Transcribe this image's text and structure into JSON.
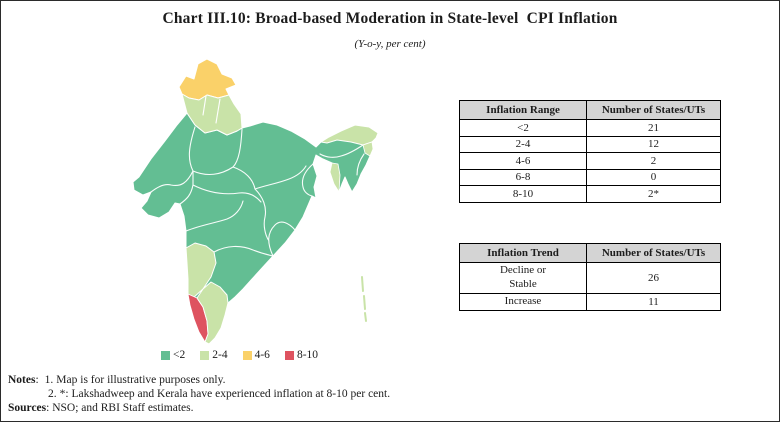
{
  "header": {
    "title": "Chart III.10: Broad-based Moderation in State-level  CPI Inflation",
    "subtitle": "(Y-o-y, per cent)"
  },
  "colors": {
    "green": "#63BE93",
    "light_green": "#C9E3A8",
    "yellow": "#FAD169",
    "red": "#DE5360",
    "table_header_bg": "#D4D4D4",
    "border": "#000000"
  },
  "map": {
    "description": "Choropleth map of India showing state-level CPI inflation ranges",
    "regions": [
      {
        "name": "jammu-kashmir-ladakh",
        "inflation_range": "4-6",
        "color": "yellow"
      },
      {
        "name": "punjab-himachal-uttarakhand",
        "inflation_range": "2-4",
        "color": "light_green"
      },
      {
        "name": "main-body-most-states",
        "inflation_range": "<2",
        "color": "green"
      },
      {
        "name": "karnataka",
        "inflation_range": "2-4",
        "color": "light_green"
      },
      {
        "name": "tamil-nadu",
        "inflation_range": "2-4",
        "color": "light_green"
      },
      {
        "name": "kerala",
        "inflation_range": "8-10",
        "color": "red"
      },
      {
        "name": "arunachal-pradesh",
        "inflation_range": "2-4",
        "color": "light_green"
      },
      {
        "name": "nagaland",
        "inflation_range": "2-4",
        "color": "light_green"
      },
      {
        "name": "tripura",
        "inflation_range": "2-4",
        "color": "light_green"
      },
      {
        "name": "andaman-nicobar-islands",
        "inflation_range": "2-4",
        "color": "light_green"
      }
    ]
  },
  "legend": {
    "items": [
      {
        "label": "<2",
        "color": "#63BE93"
      },
      {
        "label": "2-4",
        "color": "#C9E3A8"
      },
      {
        "label": "4-6",
        "color": "#FAD169"
      },
      {
        "label": "8-10",
        "color": "#DE5360"
      }
    ]
  },
  "chart_data": [
    {
      "type": "table",
      "title": "Distribution of states by inflation range",
      "columns": [
        "Inflation Range",
        "Number of States/UTs"
      ],
      "rows": [
        [
          "<2",
          "21"
        ],
        [
          "2-4",
          "12"
        ],
        [
          "4-6",
          "2"
        ],
        [
          "6-8",
          "0"
        ],
        [
          "8-10",
          "2*"
        ]
      ]
    },
    {
      "type": "table",
      "title": "Distribution of states by inflation trend",
      "columns": [
        "Inflation Trend",
        "Number of States/UTs"
      ],
      "rows": [
        [
          "Decline or Stable",
          "26"
        ],
        [
          "Increase",
          "11"
        ]
      ]
    }
  ],
  "notes": {
    "label": "Notes",
    "items": [
      {
        "num": "1.",
        "text": "Map is for illustrative purposes only."
      },
      {
        "num": "2.",
        "text": "*: Lakshadweep and Kerala have experienced inflation at 8-10 per cent."
      }
    ],
    "sources_label": "Sources",
    "sources_text": "NSO; and RBI Staff estimates."
  }
}
